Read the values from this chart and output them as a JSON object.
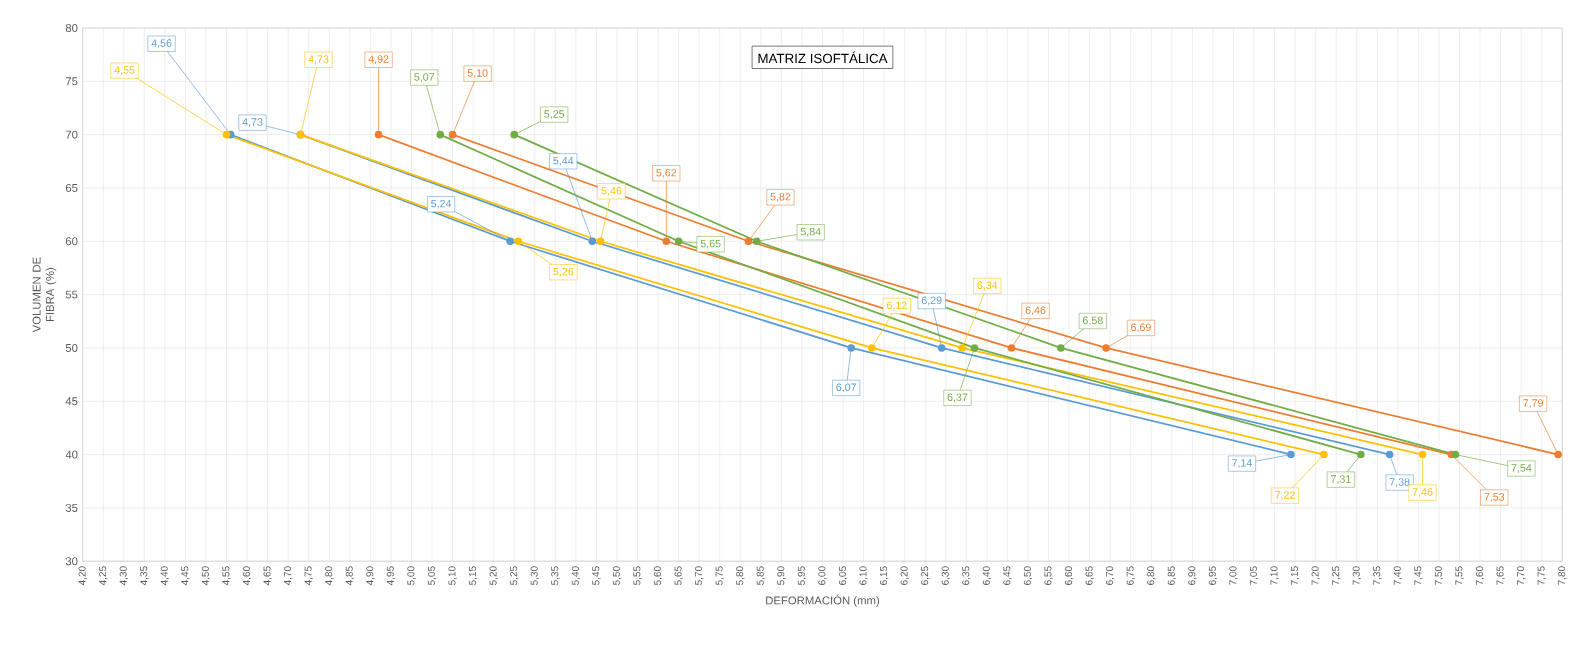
{
  "chart_data": {
    "type": "line",
    "title": "MATRIZ ISOFTÁLICA",
    "xlabel": "DEFORMACIÓN (mm)",
    "ylabel": "VOLUMEN DE FIBRA (%)",
    "series": [
      {
        "color": "#5b9bd5",
        "x": [
          4.56,
          5.24,
          6.07,
          7.14
        ],
        "values": [
          70,
          60,
          50,
          40
        ]
      },
      {
        "color": "#ffc000",
        "x": [
          4.55,
          5.26,
          6.12,
          7.22
        ],
        "values": [
          70,
          60,
          50,
          40
        ]
      },
      {
        "color": "#5b9bd5",
        "x": [
          4.73,
          5.44,
          6.29,
          7.38
        ],
        "values": [
          70,
          60,
          50,
          40
        ]
      },
      {
        "color": "#ffc000",
        "x": [
          4.73,
          5.46,
          6.34,
          7.46
        ],
        "values": [
          70,
          60,
          50,
          40
        ]
      },
      {
        "color": "#ed7d31",
        "x": [
          4.92,
          5.62,
          6.46,
          7.53
        ],
        "values": [
          70,
          60,
          50,
          40
        ]
      },
      {
        "color": "#70ad47",
        "x": [
          5.07,
          5.65,
          6.37,
          7.31
        ],
        "values": [
          70,
          60,
          50,
          40
        ]
      },
      {
        "color": "#ed7d31",
        "x": [
          5.1,
          5.82,
          6.69,
          7.79
        ],
        "values": [
          70,
          60,
          50,
          40
        ]
      },
      {
        "color": "#70ad47",
        "x": [
          5.25,
          5.84,
          6.58,
          7.54
        ],
        "values": [
          70,
          60,
          50,
          40
        ]
      }
    ],
    "annotations": [
      {
        "text": "4,56",
        "x": 4.56,
        "y": 70
      },
      {
        "text": "5,24",
        "x": 5.24,
        "y": 60
      },
      {
        "text": "6,07",
        "x": 6.07,
        "y": 50
      },
      {
        "text": "7,14",
        "x": 7.14,
        "y": 40
      },
      {
        "text": "4,55",
        "x": 4.55,
        "y": 70
      },
      {
        "text": "5,26",
        "x": 5.26,
        "y": 60
      },
      {
        "text": "6,12",
        "x": 6.12,
        "y": 50
      },
      {
        "text": "7,22",
        "x": 7.22,
        "y": 40
      },
      {
        "text": "4,73",
        "x": 4.73,
        "y": 70
      },
      {
        "text": "5,44",
        "x": 5.44,
        "y": 60
      },
      {
        "text": "6,29",
        "x": 6.29,
        "y": 50
      },
      {
        "text": "7,38",
        "x": 7.38,
        "y": 40
      },
      {
        "text": "4,73",
        "x": 4.73,
        "y": 70
      },
      {
        "text": "5,46",
        "x": 5.46,
        "y": 60
      },
      {
        "text": "6,34",
        "x": 6.34,
        "y": 50
      },
      {
        "text": "7,46",
        "x": 7.46,
        "y": 40
      },
      {
        "text": "4,92",
        "x": 4.92,
        "y": 70
      },
      {
        "text": "5,62",
        "x": 5.62,
        "y": 60
      },
      {
        "text": "6,46",
        "x": 6.46,
        "y": 50
      },
      {
        "text": "7,53",
        "x": 7.53,
        "y": 40
      },
      {
        "text": "5,07",
        "x": 5.07,
        "y": 70
      },
      {
        "text": "5,65",
        "x": 5.65,
        "y": 60
      },
      {
        "text": "6,37",
        "x": 6.37,
        "y": 50
      },
      {
        "text": "7,31",
        "x": 7.31,
        "y": 40
      },
      {
        "text": "5,10",
        "x": 5.1,
        "y": 70
      },
      {
        "text": "5,82",
        "x": 5.82,
        "y": 60
      },
      {
        "text": "6,69",
        "x": 6.69,
        "y": 50
      },
      {
        "text": "7,79",
        "x": 7.79,
        "y": 40
      },
      {
        "text": "5,25",
        "x": 5.25,
        "y": 70
      },
      {
        "text": "5,84",
        "x": 5.84,
        "y": 60
      },
      {
        "text": "6,58",
        "x": 6.58,
        "y": 50
      },
      {
        "text": "7,54",
        "x": 7.54,
        "y": 40
      }
    ],
    "xlim": [
      4.2,
      7.8
    ],
    "ylim": [
      30,
      80
    ],
    "yticks": [
      30,
      35,
      40,
      45,
      50,
      55,
      60,
      65,
      70,
      75,
      80
    ],
    "xticks": [
      {
        "value": 4.2,
        "label": "4,20"
      },
      {
        "value": 4.25,
        "label": "4,25"
      },
      {
        "value": 4.3,
        "label": "4,30"
      },
      {
        "value": 4.35,
        "label": "4,35"
      },
      {
        "value": 4.4,
        "label": "4,40"
      },
      {
        "value": 4.45,
        "label": "4,45"
      },
      {
        "value": 4.5,
        "label": "4,50"
      },
      {
        "value": 4.55,
        "label": "4,55"
      },
      {
        "value": 4.6,
        "label": "4,60"
      },
      {
        "value": 4.65,
        "label": "4,65"
      },
      {
        "value": 4.7,
        "label": "4,70"
      },
      {
        "value": 4.75,
        "label": "4,75"
      },
      {
        "value": 4.8,
        "label": "4,80"
      },
      {
        "value": 4.85,
        "label": "4,85"
      },
      {
        "value": 4.9,
        "label": "4,90"
      },
      {
        "value": 4.95,
        "label": "4,95"
      },
      {
        "value": 5.0,
        "label": "5,00"
      },
      {
        "value": 5.05,
        "label": "5,05"
      },
      {
        "value": 5.1,
        "label": "5,10"
      },
      {
        "value": 5.15,
        "label": "5,15"
      },
      {
        "value": 5.2,
        "label": "5,20"
      },
      {
        "value": 5.25,
        "label": "5,25"
      },
      {
        "value": 5.3,
        "label": "5,30"
      },
      {
        "value": 5.35,
        "label": "5,35"
      },
      {
        "value": 5.4,
        "label": "5,40"
      },
      {
        "value": 5.45,
        "label": "5,45"
      },
      {
        "value": 5.5,
        "label": "5,50"
      },
      {
        "value": 5.55,
        "label": "5,55"
      },
      {
        "value": 5.6,
        "label": "5,60"
      },
      {
        "value": 5.65,
        "label": "5,65"
      },
      {
        "value": 5.7,
        "label": "5,70"
      },
      {
        "value": 5.75,
        "label": "5,75"
      },
      {
        "value": 5.8,
        "label": "5,80"
      },
      {
        "value": 5.85,
        "label": "5,85"
      },
      {
        "value": 5.9,
        "label": "5,90"
      },
      {
        "value": 5.95,
        "label": "5,95"
      },
      {
        "value": 6.0,
        "label": "6,00"
      },
      {
        "value": 6.05,
        "label": "6,05"
      },
      {
        "value": 6.1,
        "label": "6,10"
      },
      {
        "value": 6.15,
        "label": "6,15"
      },
      {
        "value": 6.2,
        "label": "6,20"
      },
      {
        "value": 6.25,
        "label": "6,25"
      },
      {
        "value": 6.3,
        "label": "6,30"
      },
      {
        "value": 6.35,
        "label": "6,35"
      },
      {
        "value": 6.4,
        "label": "6,40"
      },
      {
        "value": 6.45,
        "label": "6,45"
      },
      {
        "value": 6.5,
        "label": "6,50"
      },
      {
        "value": 6.55,
        "label": "6,55"
      },
      {
        "value": 6.6,
        "label": "6,60"
      },
      {
        "value": 6.65,
        "label": "6,65"
      },
      {
        "value": 6.7,
        "label": "6,70"
      },
      {
        "value": 6.75,
        "label": "6,75"
      },
      {
        "value": 6.8,
        "label": "6,80"
      },
      {
        "value": 6.85,
        "label": "6,85"
      },
      {
        "value": 6.9,
        "label": "6,90"
      },
      {
        "value": 6.95,
        "label": "6,95"
      },
      {
        "value": 7.0,
        "label": "7,00"
      },
      {
        "value": 7.05,
        "label": "7,05"
      },
      {
        "value": 7.1,
        "label": "7,10"
      },
      {
        "value": 7.15,
        "label": "7,15"
      },
      {
        "value": 7.2,
        "label": "7,20"
      },
      {
        "value": 7.25,
        "label": "7,25"
      },
      {
        "value": 7.3,
        "label": "7,30"
      },
      {
        "value": 7.35,
        "label": "7,35"
      },
      {
        "value": 7.4,
        "label": "7,40"
      },
      {
        "value": 7.45,
        "label": "7,45"
      },
      {
        "value": 7.5,
        "label": "7,50"
      },
      {
        "value": 7.55,
        "label": "7,55"
      },
      {
        "value": 7.6,
        "label": "7,60"
      },
      {
        "value": 7.65,
        "label": "7,65"
      },
      {
        "value": 7.7,
        "label": "7,70"
      },
      {
        "value": 7.75,
        "label": "7,75"
      },
      {
        "value": 7.8,
        "label": "7,80"
      }
    ],
    "grid": true,
    "marker": "circle",
    "line_style": "solid"
  }
}
